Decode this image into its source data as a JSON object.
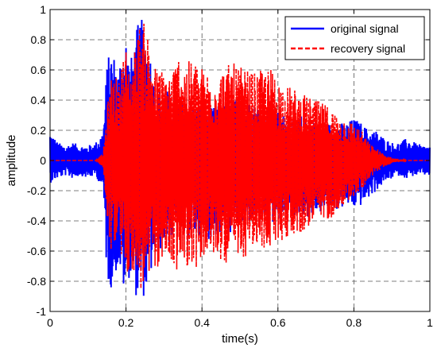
{
  "chart_data": {
    "type": "line",
    "title": "",
    "xlabel": "time(s)",
    "ylabel": "amplitude",
    "xlim": [
      0,
      1
    ],
    "ylim": [
      -1,
      1
    ],
    "x_ticks": [
      0,
      0.2,
      0.4,
      0.6,
      0.8,
      1
    ],
    "x_tick_labels": [
      "0",
      "0.2",
      "0.4",
      "0.6",
      "0.8",
      "1"
    ],
    "y_ticks": [
      -1,
      -0.8,
      -0.6,
      -0.4,
      -0.2,
      0,
      0.2,
      0.4,
      0.6,
      0.8,
      1
    ],
    "y_tick_labels": [
      "-1",
      "-0.8",
      "-0.6",
      "-0.4",
      "-0.2",
      "0",
      "0.2",
      "0.4",
      "0.6",
      "0.8",
      "1"
    ],
    "grid": true,
    "legend_position": "top-right",
    "series": [
      {
        "name": "original signal",
        "color": "#0000ff",
        "style": "solid",
        "x": [
          0,
          0.02,
          0.04,
          0.06,
          0.08,
          0.1,
          0.12,
          0.14,
          0.15,
          0.16,
          0.17,
          0.18,
          0.19,
          0.2,
          0.21,
          0.22,
          0.23,
          0.24,
          0.25,
          0.26,
          0.27,
          0.28,
          0.29,
          0.3,
          0.32,
          0.34,
          0.36,
          0.38,
          0.4,
          0.42,
          0.44,
          0.46,
          0.48,
          0.5,
          0.52,
          0.54,
          0.56,
          0.58,
          0.6,
          0.62,
          0.64,
          0.66,
          0.68,
          0.7,
          0.72,
          0.74,
          0.76,
          0.78,
          0.8,
          0.82,
          0.84,
          0.86,
          0.88,
          0.9,
          0.92,
          0.94,
          0.96,
          0.98,
          1
        ],
        "y_upper": [
          0.2,
          0.12,
          0.1,
          0.12,
          0.1,
          0.1,
          0.12,
          0.2,
          0.65,
          0.75,
          0.7,
          0.6,
          0.8,
          0.85,
          0.65,
          0.75,
          0.9,
          0.95,
          0.85,
          0.8,
          0.6,
          0.45,
          0.5,
          0.48,
          0.45,
          0.42,
          0.4,
          0.38,
          0.36,
          0.35,
          0.36,
          0.38,
          0.4,
          0.42,
          0.4,
          0.38,
          0.36,
          0.35,
          0.33,
          0.3,
          0.28,
          0.3,
          0.28,
          0.28,
          0.25,
          0.25,
          0.25,
          0.25,
          0.28,
          0.25,
          0.2,
          0.2,
          0.15,
          0.12,
          0.12,
          0.15,
          0.12,
          0.1,
          0.1
        ],
        "y_lower": [
          -0.15,
          -0.12,
          -0.1,
          -0.12,
          -0.1,
          -0.12,
          -0.1,
          -0.2,
          -0.8,
          -0.85,
          -0.78,
          -0.7,
          -0.85,
          -0.9,
          -0.75,
          -0.82,
          -0.95,
          -0.92,
          -0.9,
          -0.85,
          -0.7,
          -0.65,
          -0.6,
          -0.55,
          -0.55,
          -0.52,
          -0.55,
          -0.5,
          -0.55,
          -0.52,
          -0.5,
          -0.5,
          -0.48,
          -0.45,
          -0.42,
          -0.4,
          -0.42,
          -0.45,
          -0.4,
          -0.38,
          -0.38,
          -0.35,
          -0.38,
          -0.35,
          -0.35,
          -0.32,
          -0.33,
          -0.3,
          -0.32,
          -0.3,
          -0.25,
          -0.2,
          -0.15,
          -0.12,
          -0.1,
          -0.12,
          -0.1,
          -0.1,
          -0.1
        ]
      },
      {
        "name": "recovery signal",
        "color": "#ff0000",
        "style": "dashed",
        "x": [
          0,
          0.02,
          0.04,
          0.06,
          0.08,
          0.1,
          0.12,
          0.14,
          0.15,
          0.16,
          0.17,
          0.18,
          0.19,
          0.2,
          0.21,
          0.22,
          0.23,
          0.24,
          0.25,
          0.26,
          0.27,
          0.28,
          0.29,
          0.3,
          0.32,
          0.34,
          0.36,
          0.38,
          0.4,
          0.42,
          0.44,
          0.46,
          0.48,
          0.5,
          0.52,
          0.54,
          0.56,
          0.58,
          0.6,
          0.62,
          0.64,
          0.66,
          0.68,
          0.7,
          0.72,
          0.74,
          0.76,
          0.78,
          0.8,
          0.82,
          0.84,
          0.86,
          0.88,
          0.9,
          0.92,
          0.94,
          0.96,
          0.98,
          1
        ],
        "y_upper": [
          0,
          0,
          0,
          0,
          0,
          0,
          0,
          0.05,
          0.35,
          0.55,
          0.6,
          0.5,
          0.7,
          0.75,
          0.6,
          0.7,
          0.85,
          0.95,
          0.9,
          0.85,
          0.7,
          0.6,
          0.62,
          0.6,
          0.6,
          0.72,
          0.65,
          0.68,
          0.62,
          0.6,
          0.58,
          0.62,
          0.65,
          0.62,
          0.6,
          0.58,
          0.6,
          0.62,
          0.55,
          0.5,
          0.48,
          0.45,
          0.42,
          0.4,
          0.38,
          0.35,
          0.3,
          0.28,
          0.25,
          0.2,
          0.12,
          0.08,
          0.04,
          0.02,
          0.01,
          0,
          0,
          0,
          0
        ],
        "y_lower": [
          0,
          0,
          0,
          0,
          0,
          0,
          0,
          -0.05,
          -0.4,
          -0.6,
          -0.6,
          -0.5,
          -0.7,
          -0.8,
          -0.7,
          -0.75,
          -0.85,
          -0.88,
          -0.85,
          -0.82,
          -0.75,
          -0.72,
          -0.7,
          -0.65,
          -0.7,
          -0.75,
          -0.7,
          -0.72,
          -0.68,
          -0.65,
          -0.65,
          -0.68,
          -0.72,
          -0.7,
          -0.62,
          -0.6,
          -0.6,
          -0.58,
          -0.55,
          -0.52,
          -0.5,
          -0.48,
          -0.45,
          -0.42,
          -0.4,
          -0.38,
          -0.32,
          -0.28,
          -0.25,
          -0.2,
          -0.12,
          -0.08,
          -0.04,
          -0.02,
          -0.01,
          0,
          0,
          0,
          0
        ]
      }
    ]
  }
}
